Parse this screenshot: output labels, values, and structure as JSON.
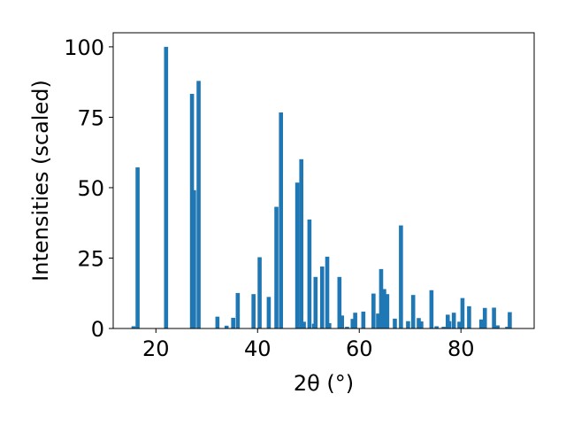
{
  "chart_data": {
    "type": "bar",
    "title": "",
    "xlabel": "2θ (°)",
    "ylabel": "Intensities (scaled)",
    "xlim": [
      11.6,
      94.4
    ],
    "ylim": [
      0,
      105
    ],
    "xticks": [
      20,
      40,
      60,
      80
    ],
    "yticks": [
      0,
      25,
      50,
      75,
      100
    ],
    "grid": false,
    "bar_color": "#1f77b4",
    "series": [
      {
        "x": [
          15.6,
          16.4,
          22.0,
          27.1,
          27.5,
          28.4,
          32.1,
          33.9,
          35.2,
          36.1,
          39.2,
          40.4,
          42.2,
          43.7,
          44.6,
          47.8,
          48.6,
          49.1,
          50.2,
          51.1,
          51.4,
          52.7,
          53.7,
          54.1,
          56.1,
          56.6,
          57.6,
          58.7,
          59.2,
          60.8,
          62.8,
          63.7,
          64.3,
          64.9,
          65.5,
          67.0,
          68.2,
          69.6,
          70.6,
          71.7,
          72.2,
          74.2,
          75.2,
          76.6,
          77.4,
          77.7,
          78.6,
          79.7,
          80.3,
          81.6,
          84.0,
          84.7,
          86.5,
          87.2,
          89.1,
          89.6
        ],
        "y": [
          0.8,
          57.2,
          100.0,
          83.3,
          49.1,
          87.9,
          4.2,
          1.0,
          3.8,
          12.6,
          12.2,
          25.3,
          11.2,
          43.2,
          76.7,
          51.8,
          60.1,
          2.4,
          38.7,
          1.7,
          18.3,
          22.0,
          25.5,
          1.9,
          18.3,
          4.6,
          0.6,
          3.4,
          5.6,
          6.0,
          12.4,
          5.3,
          21.1,
          14.0,
          12.2,
          3.5,
          36.6,
          2.6,
          11.9,
          3.7,
          2.5,
          13.6,
          0.8,
          0.6,
          4.9,
          2.6,
          5.6,
          2.4,
          10.8,
          7.9,
          3.2,
          7.3,
          7.4,
          1.1,
          0.6,
          5.8
        ]
      }
    ]
  }
}
